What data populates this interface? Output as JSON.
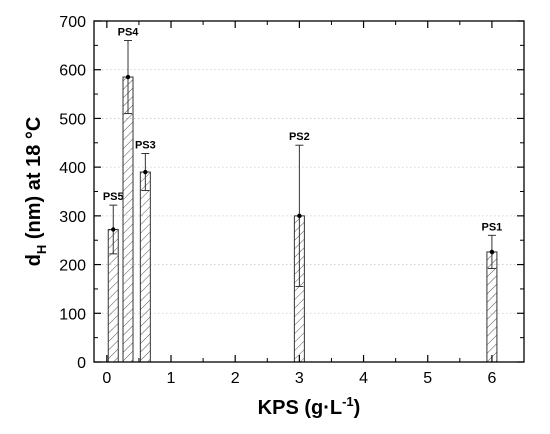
{
  "chart_data": {
    "type": "bar",
    "title": "",
    "xlabel": {
      "main": "KPS (g·L",
      "sup": "-1",
      "close": ")"
    },
    "ylabel": {
      "base": "d",
      "sub": "H",
      "rest": " (nm) at 18 °C"
    },
    "xlim": [
      -0.2,
      6.5
    ],
    "ylim": [
      0,
      700
    ],
    "xticks": [
      "0",
      "1",
      "2",
      "3",
      "4",
      "5",
      "6"
    ],
    "yticks": [
      "0",
      "100",
      "200",
      "300",
      "400",
      "500",
      "600",
      "700"
    ],
    "grid": "horizontal-dotted",
    "series": [
      {
        "points": [
          {
            "label": "PS5",
            "x": 0.1,
            "y": 272,
            "err_low": 222,
            "err_high": 322
          },
          {
            "label": "PS4",
            "x": 0.33,
            "y": 585,
            "err_low": 510,
            "err_high": 660
          },
          {
            "label": "PS3",
            "x": 0.6,
            "y": 390,
            "err_low": 352,
            "err_high": 428
          },
          {
            "label": "PS2",
            "x": 3.0,
            "y": 300,
            "err_low": 155,
            "err_high": 445
          },
          {
            "label": "PS1",
            "x": 6.0,
            "y": 226,
            "err_low": 192,
            "err_high": 260
          }
        ]
      }
    ]
  }
}
